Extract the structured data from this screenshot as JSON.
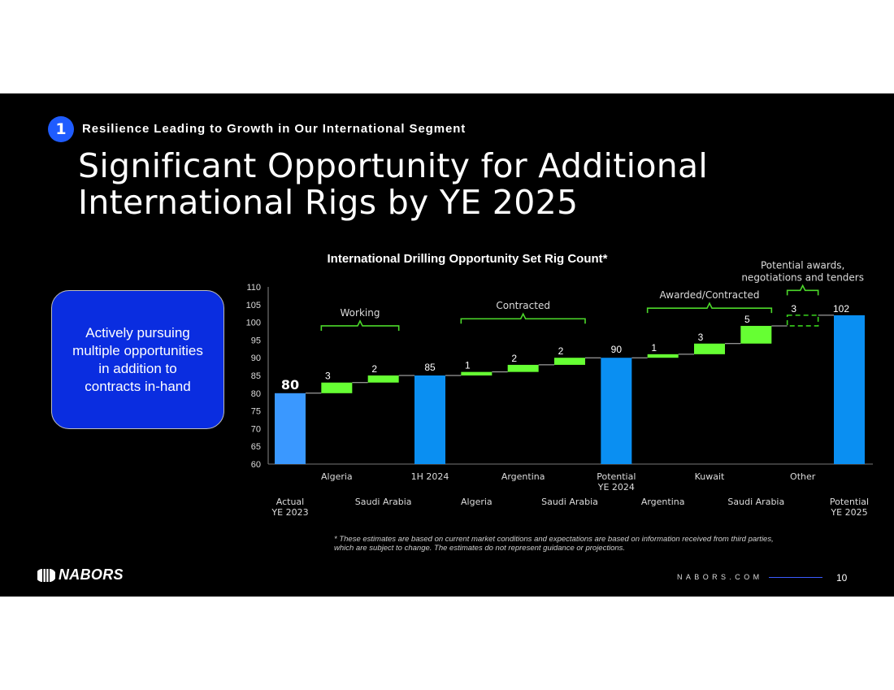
{
  "header": {
    "badge_number": "1",
    "subtitle": "Resilience Leading to Growth in Our International Segment",
    "title_line1": "Significant Opportunity for Additional",
    "title_line2": "International Rigs by YE 2025"
  },
  "callout": {
    "text": "Actively pursuing multiple opportunities in addition to contracts in-hand"
  },
  "chart_data": {
    "type": "waterfall",
    "title": "International Drilling Opportunity Set Rig Count*",
    "ylim": [
      60,
      110
    ],
    "yticks": [
      60,
      65,
      70,
      75,
      80,
      85,
      90,
      95,
      100,
      105,
      110
    ],
    "bars": [
      {
        "label": "Actual\nYE 2023",
        "kind": "total",
        "start": 60,
        "end": 80,
        "value_label": "80",
        "label_row": "lower"
      },
      {
        "label": "Algeria",
        "kind": "increase",
        "start": 80,
        "end": 83,
        "value_label": "3",
        "label_row": "upper"
      },
      {
        "label": "Saudi Arabia",
        "kind": "increase",
        "start": 83,
        "end": 85,
        "value_label": "2",
        "label_row": "lower"
      },
      {
        "label": "1H 2024",
        "kind": "total",
        "start": 60,
        "end": 85,
        "value_label": "85",
        "label_row": "upper"
      },
      {
        "label": "Algeria",
        "kind": "increase",
        "start": 85,
        "end": 86,
        "value_label": "1",
        "label_row": "lower"
      },
      {
        "label": "Argentina",
        "kind": "increase",
        "start": 86,
        "end": 88,
        "value_label": "2",
        "label_row": "upper"
      },
      {
        "label": "Saudi Arabia",
        "kind": "increase",
        "start": 88,
        "end": 90,
        "value_label": "2",
        "label_row": "lower"
      },
      {
        "label": "Potential\nYE 2024",
        "kind": "total",
        "start": 60,
        "end": 90,
        "value_label": "90",
        "label_row": "upper"
      },
      {
        "label": "Argentina",
        "kind": "increase",
        "start": 90,
        "end": 91,
        "value_label": "1",
        "label_row": "lower"
      },
      {
        "label": "Kuwait",
        "kind": "increase",
        "start": 91,
        "end": 94,
        "value_label": "3",
        "label_row": "upper"
      },
      {
        "label": "Saudi Arabia",
        "kind": "increase",
        "start": 94,
        "end": 99,
        "value_label": "5",
        "label_row": "lower"
      },
      {
        "label": "Other",
        "kind": "potential",
        "start": 99,
        "end": 102,
        "value_label": "3",
        "label_row": "upper"
      },
      {
        "label": "Potential\nYE 2025",
        "kind": "total",
        "start": 60,
        "end": 102,
        "value_label": "102",
        "label_row": "lower"
      }
    ],
    "brackets": [
      {
        "label": "Working",
        "from_bar": 1,
        "to_bar": 2,
        "level": 99
      },
      {
        "label": "Contracted",
        "from_bar": 4,
        "to_bar": 6,
        "level": 101
      },
      {
        "label": "Awarded/Contracted",
        "from_bar": 8,
        "to_bar": 10,
        "level": 104
      },
      {
        "label": "Potential awards,\nnegotiations and tenders",
        "from_bar": 11,
        "to_bar": 11,
        "level": 109
      }
    ],
    "colors": {
      "first_total": "#3a98ff",
      "total": "#0a8ff2",
      "increase": "#66ff33",
      "potential": "#39d21c",
      "bracket": "#4cd82a"
    }
  },
  "footnote": "* These estimates are based on current market conditions and expectations are based on information received from third parties, which are subject to change. The estimates do not represent guidance or projections.",
  "footer": {
    "logo_text": "NABORS",
    "website": "NABORS.COM",
    "page_number": "10"
  }
}
